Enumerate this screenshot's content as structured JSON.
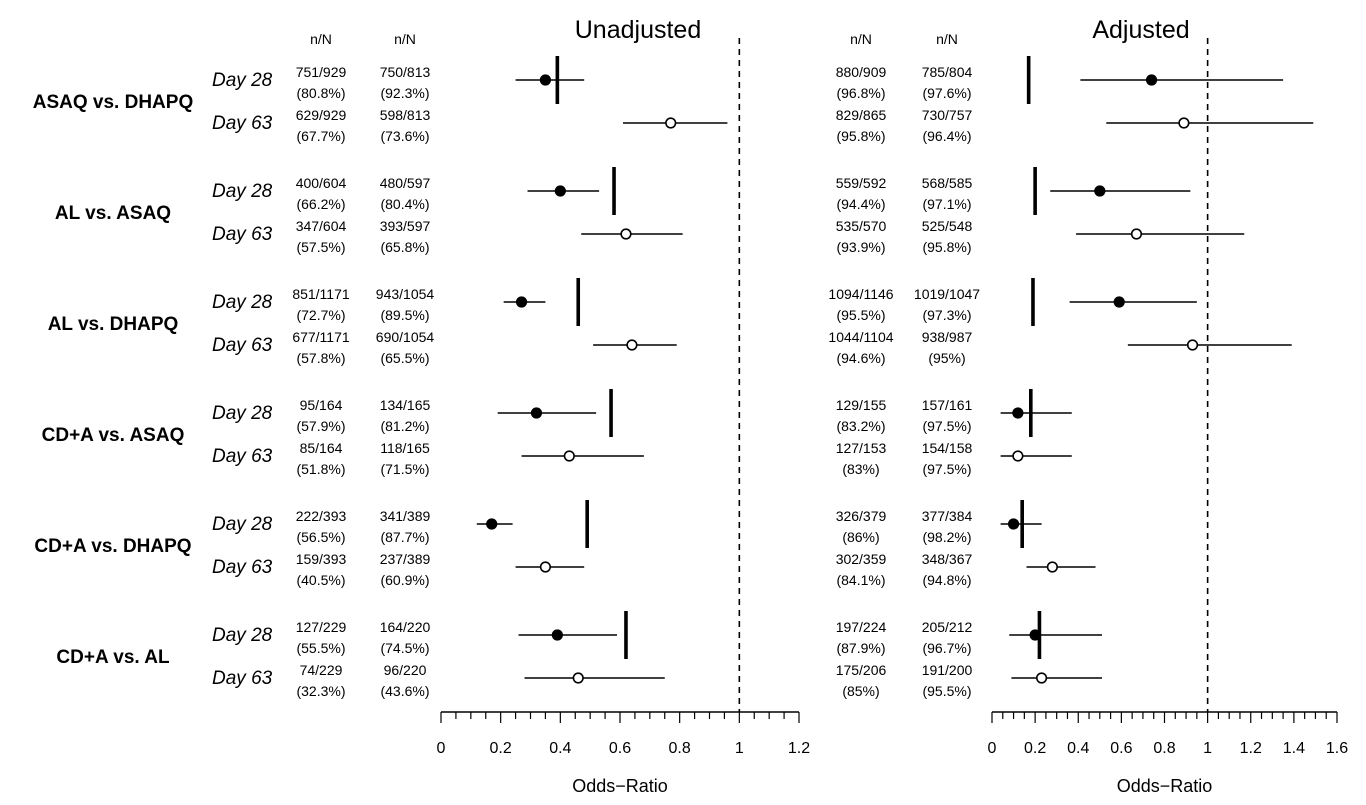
{
  "chart_data": {
    "type": "forest",
    "column_header": "n/N",
    "panels": [
      {
        "title": "Unadjusted",
        "xlabel": "Odds−Ratio",
        "xlim": [
          0,
          1.2
        ],
        "ticks": [
          "0",
          "0.2",
          "0.4",
          "0.6",
          "0.8",
          "1",
          "1.2"
        ],
        "tick_values": [
          0,
          0.2,
          0.4,
          0.6,
          0.8,
          1.0,
          1.2
        ],
        "reference_line": 1,
        "comparisons": [
          {
            "label": "ASAQ vs. DHAPQ",
            "pooled": 0.39,
            "rows": [
              {
                "day": "Day 28",
                "n1": "751/929",
                "p1": "(80.8%)",
                "n2": "750/813",
                "p2": "(92.3%)",
                "or": 0.35,
                "lo": 0.25,
                "hi": 0.48
              },
              {
                "day": "Day 63",
                "n1": "629/929",
                "p1": "(67.7%)",
                "n2": "598/813",
                "p2": "(73.6%)",
                "or": 0.77,
                "lo": 0.61,
                "hi": 0.96
              }
            ]
          },
          {
            "label": "AL vs. ASAQ",
            "pooled": 0.58,
            "rows": [
              {
                "day": "Day 28",
                "n1": "400/604",
                "p1": "(66.2%)",
                "n2": "480/597",
                "p2": "(80.4%)",
                "or": 0.4,
                "lo": 0.29,
                "hi": 0.53
              },
              {
                "day": "Day 63",
                "n1": "347/604",
                "p1": "(57.5%)",
                "n2": "393/597",
                "p2": "(65.8%)",
                "or": 0.62,
                "lo": 0.47,
                "hi": 0.81
              }
            ]
          },
          {
            "label": "AL vs. DHAPQ",
            "pooled": 0.46,
            "rows": [
              {
                "day": "Day 28",
                "n1": "851/1171",
                "p1": "(72.7%)",
                "n2": "943/1054",
                "p2": "(89.5%)",
                "or": 0.27,
                "lo": 0.21,
                "hi": 0.35
              },
              {
                "day": "Day 63",
                "n1": "677/1171",
                "p1": "(57.8%)",
                "n2": "690/1054",
                "p2": "(65.5%)",
                "or": 0.64,
                "lo": 0.51,
                "hi": 0.79
              }
            ]
          },
          {
            "label": "CD+A vs. ASAQ",
            "pooled": 0.57,
            "rows": [
              {
                "day": "Day 28",
                "n1": "95/164",
                "p1": "(57.9%)",
                "n2": "134/165",
                "p2": "(81.2%)",
                "or": 0.32,
                "lo": 0.19,
                "hi": 0.52
              },
              {
                "day": "Day 63",
                "n1": "85/164",
                "p1": "(51.8%)",
                "n2": "118/165",
                "p2": "(71.5%)",
                "or": 0.43,
                "lo": 0.27,
                "hi": 0.68
              }
            ]
          },
          {
            "label": "CD+A vs. DHAPQ",
            "pooled": 0.49,
            "rows": [
              {
                "day": "Day 28",
                "n1": "222/393",
                "p1": "(56.5%)",
                "n2": "341/389",
                "p2": "(87.7%)",
                "or": 0.17,
                "lo": 0.12,
                "hi": 0.24
              },
              {
                "day": "Day 63",
                "n1": "159/393",
                "p1": "(40.5%)",
                "n2": "237/389",
                "p2": "(60.9%)",
                "or": 0.35,
                "lo": 0.25,
                "hi": 0.48
              }
            ]
          },
          {
            "label": "CD+A vs. AL",
            "pooled": 0.62,
            "rows": [
              {
                "day": "Day 28",
                "n1": "127/229",
                "p1": "(55.5%)",
                "n2": "164/220",
                "p2": "(74.5%)",
                "or": 0.39,
                "lo": 0.26,
                "hi": 0.59
              },
              {
                "day": "Day 63",
                "n1": "74/229",
                "p1": "(32.3%)",
                "n2": "96/220",
                "p2": "(43.6%)",
                "or": 0.46,
                "lo": 0.28,
                "hi": 0.75
              }
            ]
          }
        ]
      },
      {
        "title": "Adjusted",
        "xlabel": "Odds−Ratio",
        "xlim": [
          0,
          1.6
        ],
        "ticks": [
          "0",
          "0.2",
          "0.4",
          "0.6",
          "0.8",
          "1",
          "1.2",
          "1.4",
          "1.6"
        ],
        "tick_values": [
          0,
          0.2,
          0.4,
          0.6,
          0.8,
          1.0,
          1.2,
          1.4,
          1.6
        ],
        "reference_line": 1,
        "comparisons": [
          {
            "label": "ASAQ vs. DHAPQ",
            "pooled": 0.17,
            "rows": [
              {
                "day": "Day 28",
                "n1": "880/909",
                "p1": "(96.8%)",
                "n2": "785/804",
                "p2": "(97.6%)",
                "or": 0.74,
                "lo": 0.41,
                "hi": 1.35
              },
              {
                "day": "Day 63",
                "n1": "829/865",
                "p1": "(95.8%)",
                "n2": "730/757",
                "p2": "(96.4%)",
                "or": 0.89,
                "lo": 0.53,
                "hi": 1.49
              }
            ]
          },
          {
            "label": "AL vs. ASAQ",
            "pooled": 0.2,
            "rows": [
              {
                "day": "Day 28",
                "n1": "559/592",
                "p1": "(94.4%)",
                "n2": "568/585",
                "p2": "(97.1%)",
                "or": 0.5,
                "lo": 0.27,
                "hi": 0.92
              },
              {
                "day": "Day 63",
                "n1": "535/570",
                "p1": "(93.9%)",
                "n2": "525/548",
                "p2": "(95.8%)",
                "or": 0.67,
                "lo": 0.39,
                "hi": 1.17
              }
            ]
          },
          {
            "label": "AL vs. DHAPQ",
            "pooled": 0.19,
            "rows": [
              {
                "day": "Day 28",
                "n1": "1094/1146",
                "p1": "(95.5%)",
                "n2": "1019/1047",
                "p2": "(97.3%)",
                "or": 0.59,
                "lo": 0.36,
                "hi": 0.95
              },
              {
                "day": "Day 63",
                "n1": "1044/1104",
                "p1": "(94.6%)",
                "n2": "938/987",
                "p2": "(95%)",
                "or": 0.93,
                "lo": 0.63,
                "hi": 1.39
              }
            ]
          },
          {
            "label": "CD+A vs. ASAQ",
            "pooled": 0.18,
            "rows": [
              {
                "day": "Day 28",
                "n1": "129/155",
                "p1": "(83.2%)",
                "n2": "157/161",
                "p2": "(97.5%)",
                "or": 0.12,
                "lo": 0.04,
                "hi": 0.37
              },
              {
                "day": "Day 63",
                "n1": "127/153",
                "p1": "(83%)",
                "n2": "154/158",
                "p2": "(97.5%)",
                "or": 0.12,
                "lo": 0.04,
                "hi": 0.37
              }
            ]
          },
          {
            "label": "CD+A vs. DHAPQ",
            "pooled": 0.14,
            "rows": [
              {
                "day": "Day 28",
                "n1": "326/379",
                "p1": "(86%)",
                "n2": "377/384",
                "p2": "(98.2%)",
                "or": 0.1,
                "lo": 0.04,
                "hi": 0.23
              },
              {
                "day": "Day 63",
                "n1": "302/359",
                "p1": "(84.1%)",
                "n2": "348/367",
                "p2": "(94.8%)",
                "or": 0.28,
                "lo": 0.16,
                "hi": 0.48
              }
            ]
          },
          {
            "label": "CD+A vs. AL",
            "pooled": 0.22,
            "rows": [
              {
                "day": "Day 28",
                "n1": "197/224",
                "p1": "(87.9%)",
                "n2": "205/212",
                "p2": "(96.7%)",
                "or": 0.2,
                "lo": 0.08,
                "hi": 0.51
              },
              {
                "day": "Day 63",
                "n1": "175/206",
                "p1": "(85%)",
                "n2": "191/200",
                "p2": "(95.5%)",
                "or": 0.23,
                "lo": 0.09,
                "hi": 0.51
              }
            ]
          }
        ]
      }
    ]
  }
}
